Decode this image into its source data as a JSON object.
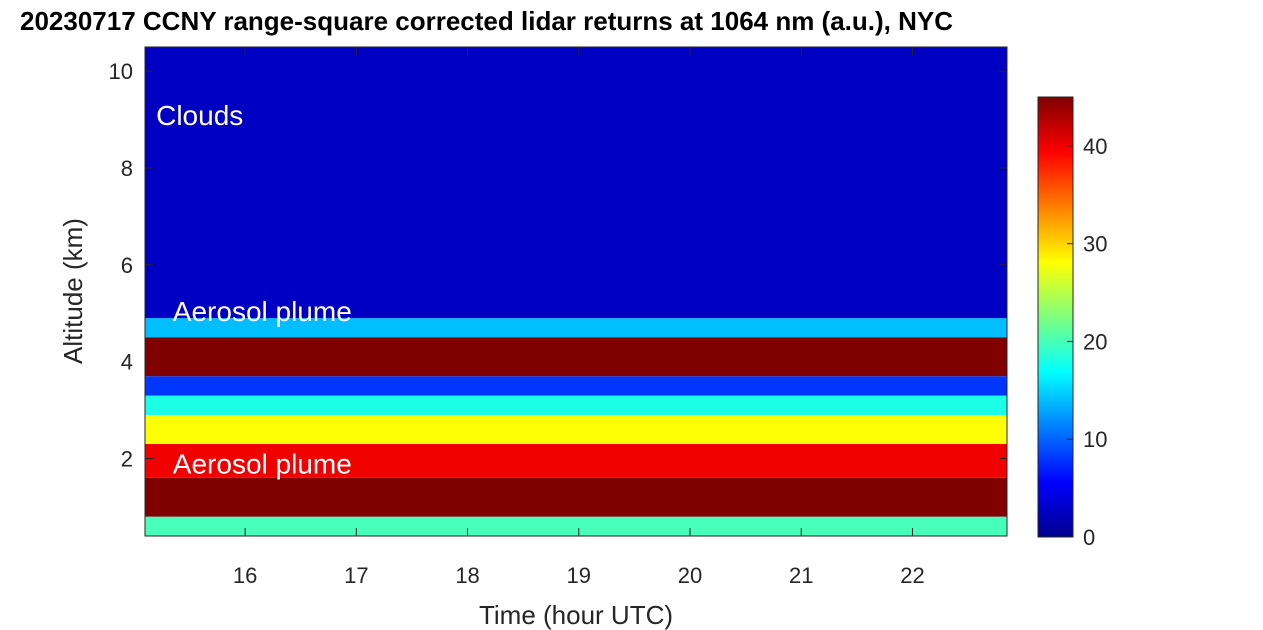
{
  "chart_data": {
    "type": "heatmap",
    "title": "20230717 CCNY range-square corrected lidar returns at 1064 nm (a.u.), NYC",
    "xlabel": "Time (hour UTC)",
    "ylabel": "Altitude (km)",
    "xlim": [
      15.1,
      22.85
    ],
    "ylim": [
      0.4,
      10.5
    ],
    "x_ticks": [
      16,
      17,
      18,
      19,
      20,
      21,
      22
    ],
    "y_ticks": [
      2,
      4,
      6,
      8,
      10
    ],
    "colorbar": {
      "range": [
        0,
        45
      ],
      "ticks": [
        0,
        10,
        20,
        30,
        40
      ],
      "colormap": "jet"
    },
    "annotations": [
      {
        "text": "Clouds",
        "x": 15.2,
        "y": 9.1
      },
      {
        "text": "Aerosol plume",
        "x": 15.35,
        "y": 5.05
      },
      {
        "text": "Aerosol plume",
        "x": 15.35,
        "y": 1.9
      }
    ],
    "layers": [
      {
        "y_bottom": 0.4,
        "y_top": 0.8,
        "value": 20
      },
      {
        "y_bottom": 0.8,
        "y_top": 1.6,
        "value": 45
      },
      {
        "y_bottom": 1.6,
        "y_top": 2.3,
        "value": 40
      },
      {
        "y_bottom": 2.3,
        "y_top": 2.9,
        "value": 28
      },
      {
        "y_bottom": 2.9,
        "y_top": 3.3,
        "value": 18
      },
      {
        "y_bottom": 3.3,
        "y_top": 3.7,
        "value": 8
      },
      {
        "y_bottom": 3.7,
        "y_top": 4.5,
        "value": 45
      },
      {
        "y_bottom": 4.5,
        "y_top": 4.9,
        "value": 14
      },
      {
        "y_bottom": 4.9,
        "y_top": 10.5,
        "value": 3
      }
    ]
  }
}
